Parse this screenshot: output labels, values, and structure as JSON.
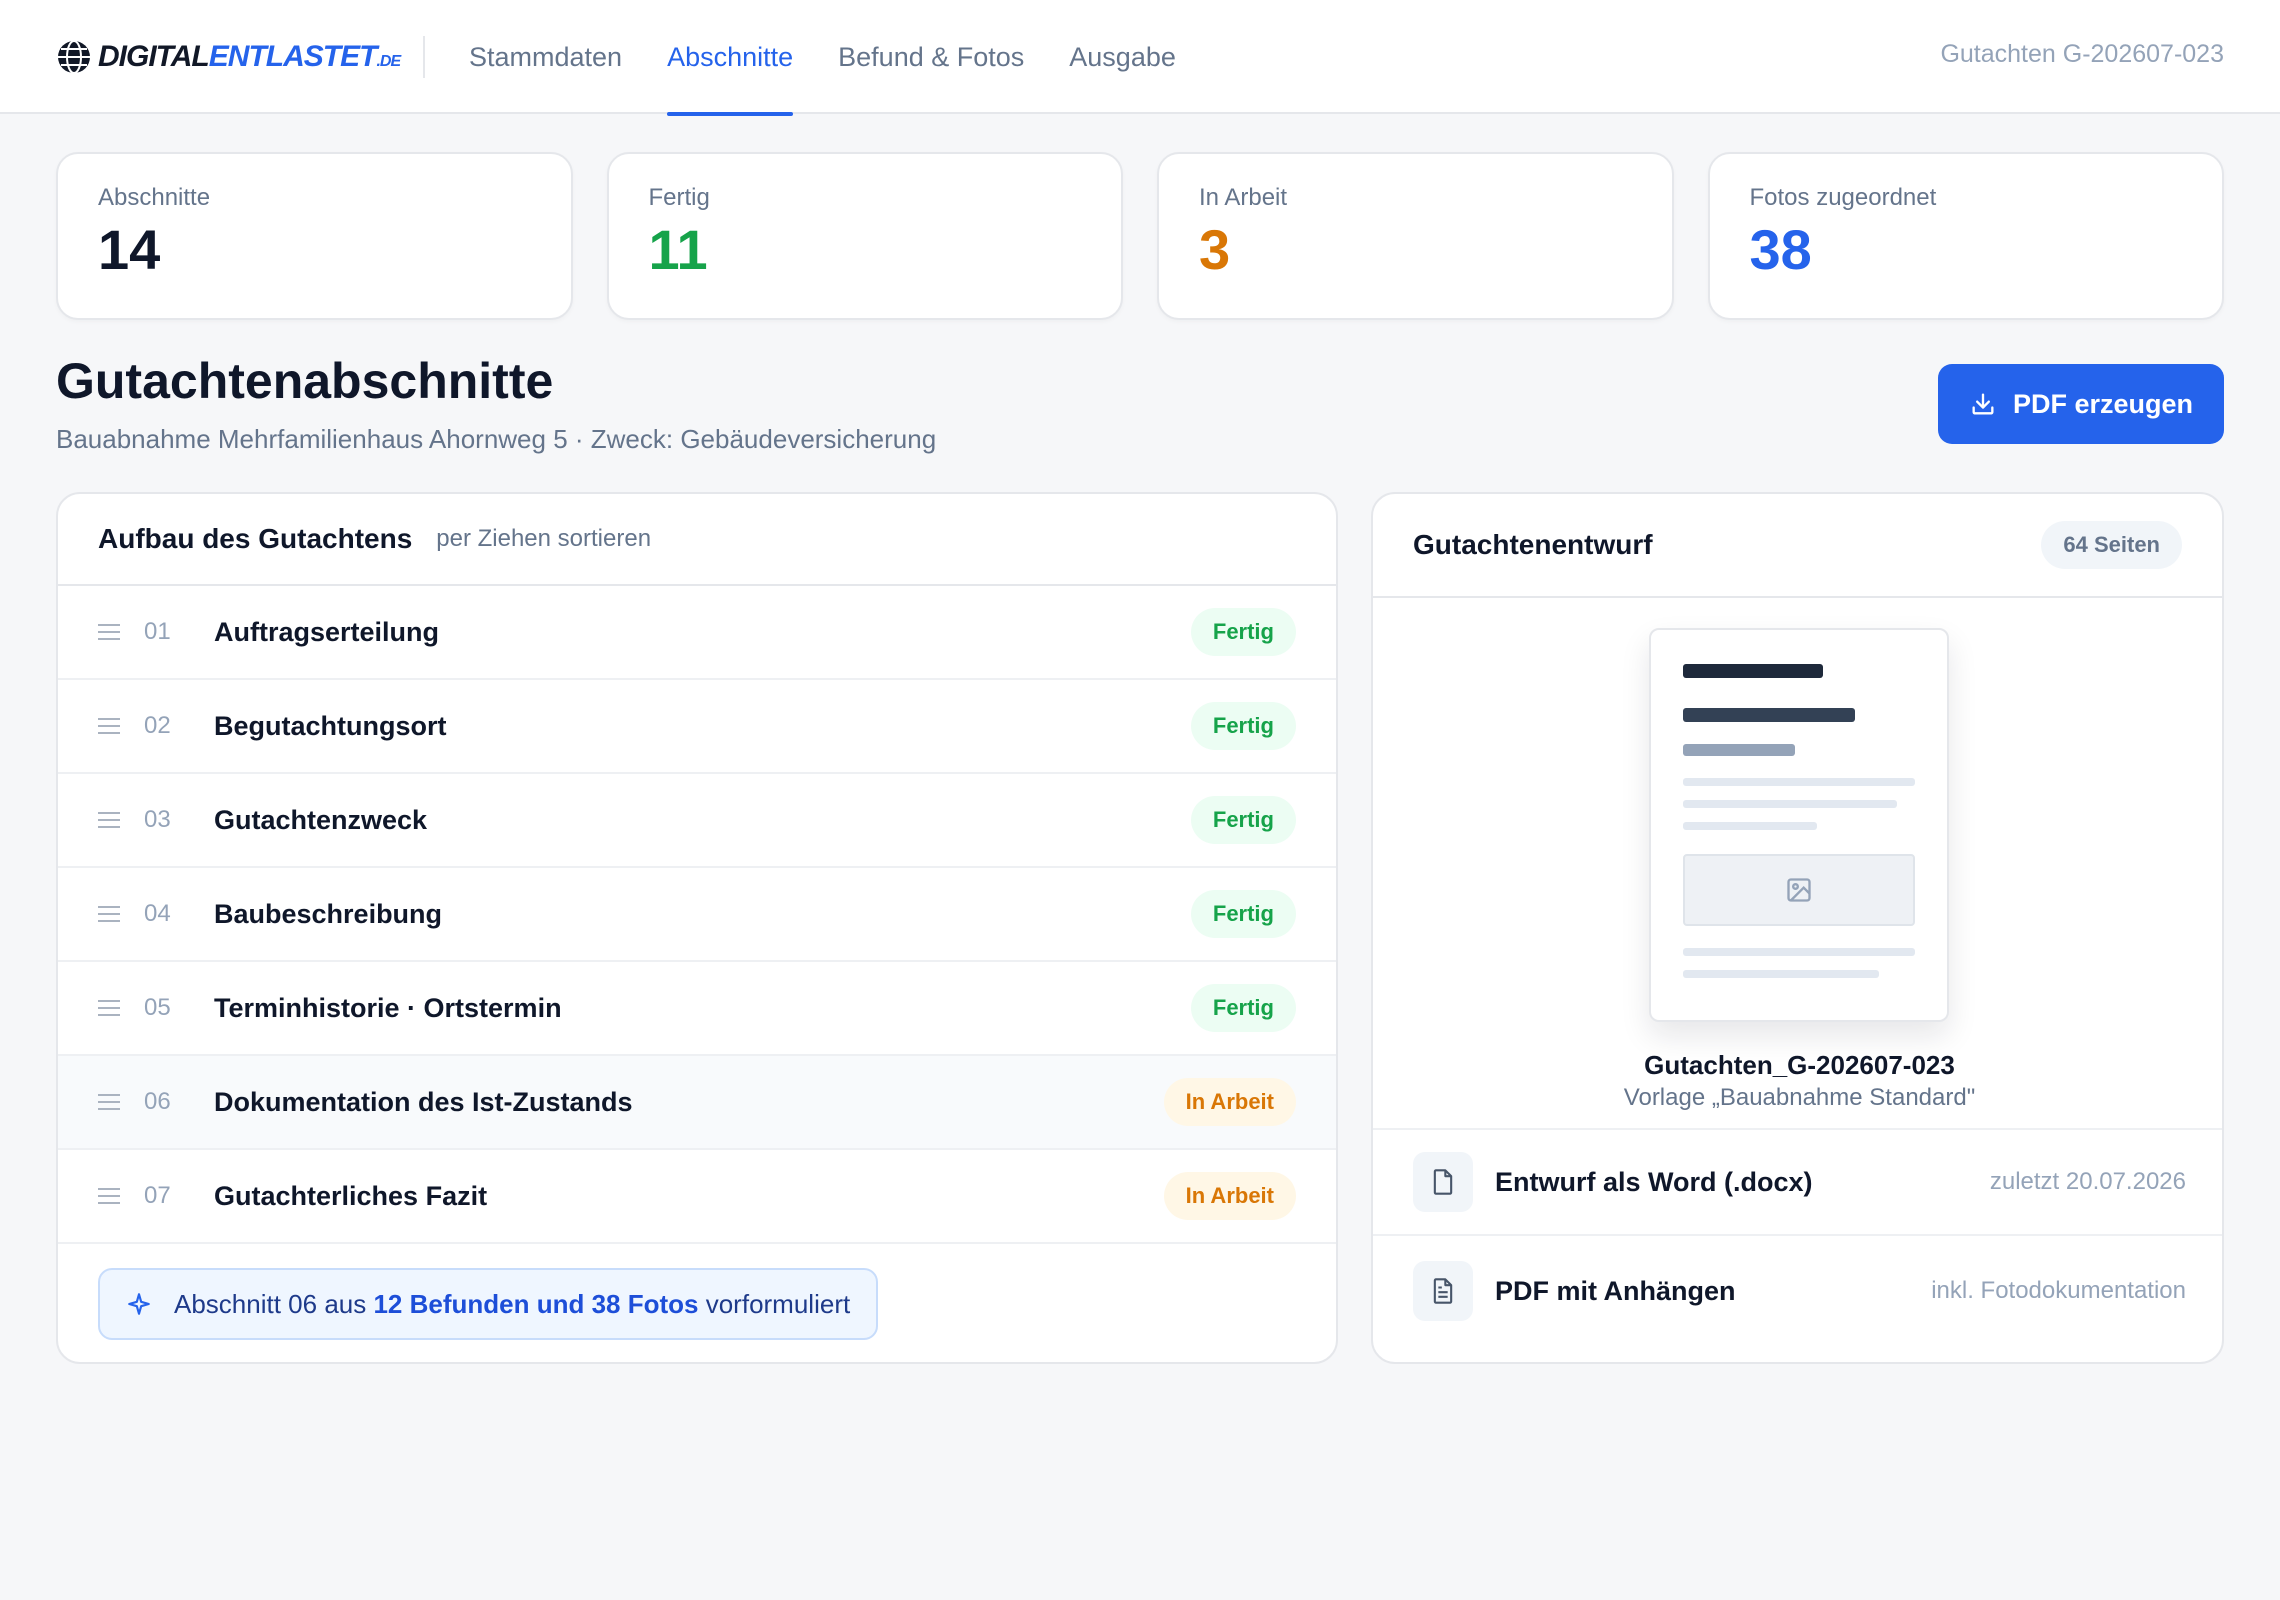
{
  "header": {
    "logo": {
      "part1": "DIGITAL",
      "part2": "ENTLASTET",
      "part3": ".DE"
    },
    "tabs": [
      {
        "label": "Stammdaten"
      },
      {
        "label": "Abschnitte"
      },
      {
        "label": "Befund & Fotos"
      },
      {
        "label": "Ausgabe"
      }
    ],
    "active_tab": "Abschnitte",
    "reference": "Gutachten G-202607-023"
  },
  "stats": [
    {
      "label": "Abschnitte",
      "value": "14",
      "color": "#0f172a"
    },
    {
      "label": "Fertig",
      "value": "11",
      "color": "#16a34a"
    },
    {
      "label": "In Arbeit",
      "value": "3",
      "color": "#d97706"
    },
    {
      "label": "Fotos zugeordnet",
      "value": "38",
      "color": "#2563eb"
    }
  ],
  "page": {
    "title": "Gutachtenabschnitte",
    "subtitle": "Bauabnahme Mehrfamilienhaus Ahornweg 5 · Zweck: Gebäudeversicherung",
    "pdf_button": "PDF erzeugen"
  },
  "structure": {
    "title": "Aufbau des Gutachtens",
    "hint": "per Ziehen sortieren",
    "sections": [
      {
        "num": "01",
        "title": "Auftragserteilung",
        "status": "Fertig"
      },
      {
        "num": "02",
        "title": "Begutachtungsort",
        "status": "Fertig"
      },
      {
        "num": "03",
        "title": "Gutachtenzweck",
        "status": "Fertig"
      },
      {
        "num": "04",
        "title": "Baubeschreibung",
        "status": "Fertig"
      },
      {
        "num": "05",
        "title": "Terminhistorie · Ortstermin",
        "status": "Fertig"
      },
      {
        "num": "06",
        "title": "Dokumentation des Ist-Zustands",
        "status": "In Arbeit"
      },
      {
        "num": "07",
        "title": "Gutachterliches Fazit",
        "status": "In Arbeit"
      }
    ],
    "ai_note": {
      "prefix": "Abschnitt 06 aus ",
      "highlight": "12 Befunden und 38 Fotos",
      "suffix": " vorformuliert"
    }
  },
  "draft": {
    "title": "Gutachtenentwurf",
    "pages": "64 Seiten",
    "file_name": "Gutachten_G-202607-023",
    "template": "Vorlage „Bauabnahme Standard\"",
    "files": [
      {
        "name": "Entwurf als Word (.docx)",
        "meta": "zuletzt 20.07.2026",
        "icon": "file-icon"
      },
      {
        "name": "PDF mit Anhängen",
        "meta": "inkl. Fotodokumentation",
        "icon": "file-text-icon"
      }
    ]
  }
}
